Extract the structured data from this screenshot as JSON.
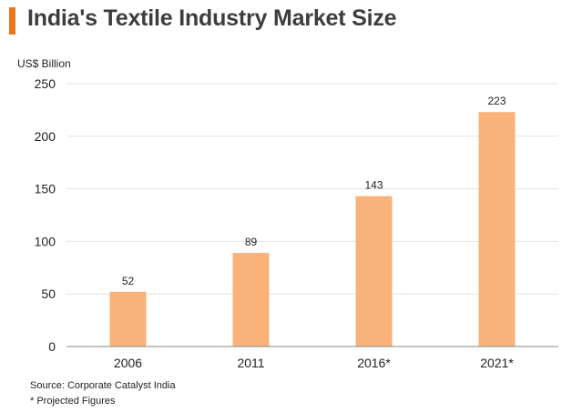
{
  "title": "India's Textile Industry Market Size",
  "colors": {
    "bar": "#f8b27a",
    "grid": "#e2e2e2",
    "axis": "#8a8a8a",
    "accent": "#e8781f",
    "title": "#3d3d3d",
    "text": "#222222"
  },
  "chart_data": {
    "type": "bar",
    "title": "India's Textile Industry Market Size",
    "ylabel": "US$ Billion",
    "xlabel": "",
    "categories": [
      "2006",
      "2011",
      "2016*",
      "2021*"
    ],
    "values": [
      52,
      89,
      143,
      223
    ],
    "data_labels": [
      "52",
      "89",
      "143",
      "223"
    ],
    "ylim": [
      0,
      250
    ],
    "yticks": [
      0,
      50,
      100,
      150,
      200,
      250
    ],
    "grid": true,
    "legend": "none"
  },
  "footnotes": {
    "source": "Source: Corporate Catalyst India",
    "note": "* Projected Figures"
  }
}
